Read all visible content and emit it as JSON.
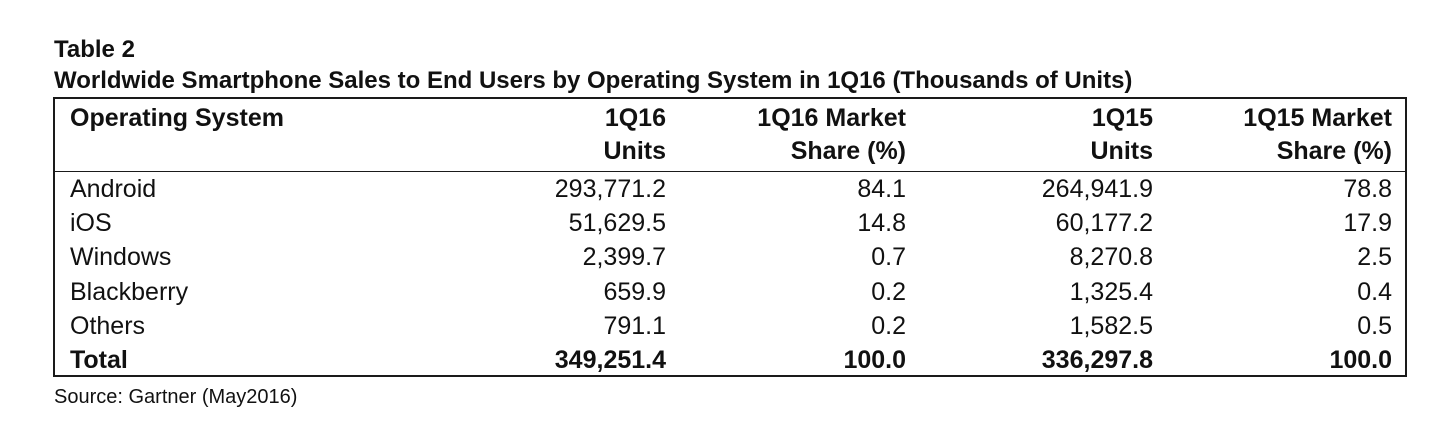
{
  "chart_data": {
    "type": "table",
    "title": "Table 2",
    "subtitle": "Worldwide Smartphone Sales to End Users by Operating System in 1Q16 (Thousands of Units)",
    "columns": [
      [
        "Operating System"
      ],
      [
        "1Q16",
        "Units"
      ],
      [
        "1Q16 Market",
        "Share (%)"
      ],
      [
        "1Q15",
        "Units"
      ],
      [
        "1Q15 Market",
        "Share (%)"
      ]
    ],
    "rows": [
      [
        "Android",
        "293,771.2",
        "84.1",
        "264,941.9",
        "78.8"
      ],
      [
        "iOS",
        "51,629.5",
        "14.8",
        "60,177.2",
        "17.9"
      ],
      [
        "Windows",
        "2,399.7",
        "0.7",
        "8,270.8",
        "2.5"
      ],
      [
        "Blackberry",
        "659.9",
        "0.2",
        "1,325.4",
        "0.4"
      ],
      [
        "Others",
        "791.1",
        "0.2",
        "1,582.5",
        "0.5"
      ]
    ],
    "total": [
      "Total",
      "349,251.4",
      "100.0",
      "336,297.8",
      "100.0"
    ],
    "source": "Source: Gartner (May2016)"
  }
}
